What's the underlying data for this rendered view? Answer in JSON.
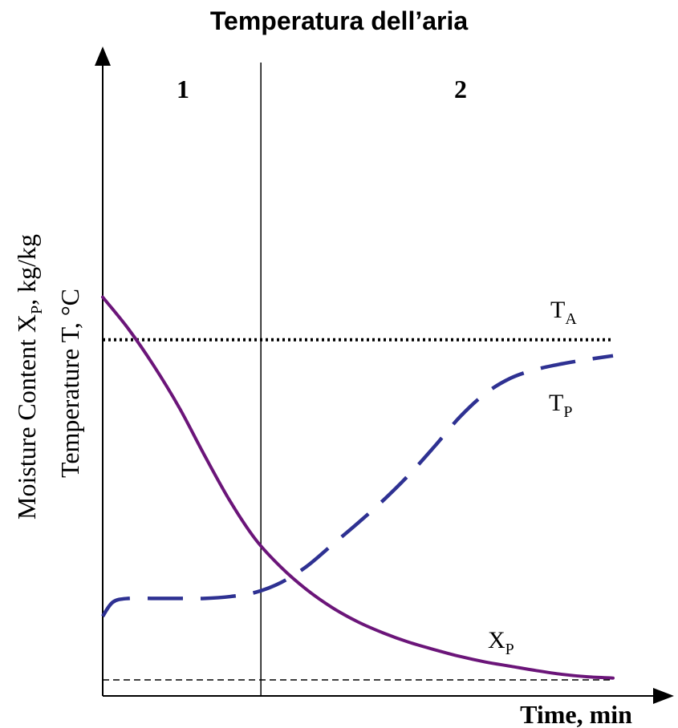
{
  "title": "Temperatura dell’aria",
  "chart_data": {
    "type": "line",
    "title": "Temperatura dell’aria",
    "xlabel": "Time, min",
    "ylabel_line1": "Moisture Content  X",
    "ylabel_line1_sub": "P",
    "ylabel_line1_unit": ", kg/kg",
    "ylabel_line2": "Temperature T,  °C",
    "xlim": [
      0,
      100
    ],
    "ylim": [
      0,
      100
    ],
    "grid": false,
    "axis_ticks": false,
    "regions": [
      {
        "label": "1",
        "x_start": 0,
        "x_end": 31
      },
      {
        "label": "2",
        "x_start": 31,
        "x_end": 100
      }
    ],
    "region_divider_x": 31,
    "series": [
      {
        "name": "T",
        "name_sub": "A",
        "style": "dotted",
        "color": "#000000",
        "x": [
          0,
          100
        ],
        "y": [
          55.1,
          55.1
        ]
      },
      {
        "name": "T",
        "name_sub": "P",
        "style": "dashed",
        "color": "#2e3192",
        "x": [
          0,
          2,
          5,
          10,
          15,
          20,
          25,
          30,
          35,
          40,
          45,
          50,
          55,
          60,
          65,
          70,
          75,
          80,
          85,
          90,
          95,
          100
        ],
        "y": [
          10.3,
          12.6,
          13.2,
          13.2,
          13.2,
          13.2,
          13.5,
          14.2,
          15.8,
          18.4,
          21.9,
          25.4,
          29.1,
          33.2,
          37.8,
          42.6,
          46.4,
          48.9,
          50.3,
          51.2,
          51.9,
          52.5
        ]
      },
      {
        "name": "X",
        "name_sub": "P",
        "style": "solid",
        "color": "#6b1579",
        "x": [
          0,
          5,
          10,
          15,
          20,
          25,
          30,
          35,
          40,
          45,
          50,
          55,
          60,
          65,
          70,
          75,
          80,
          85,
          90,
          95,
          100
        ],
        "y": [
          62.0,
          56.9,
          50.9,
          44.1,
          36.3,
          28.9,
          22.7,
          18.2,
          14.6,
          11.7,
          9.4,
          7.6,
          6.1,
          4.9,
          3.8,
          2.9,
          2.2,
          1.5,
          0.9,
          0.5,
          0.3
        ]
      },
      {
        "name": "",
        "style": "thin-dashed",
        "color": "#000000",
        "x": [
          0,
          100
        ],
        "y": [
          0,
          0
        ]
      }
    ]
  }
}
